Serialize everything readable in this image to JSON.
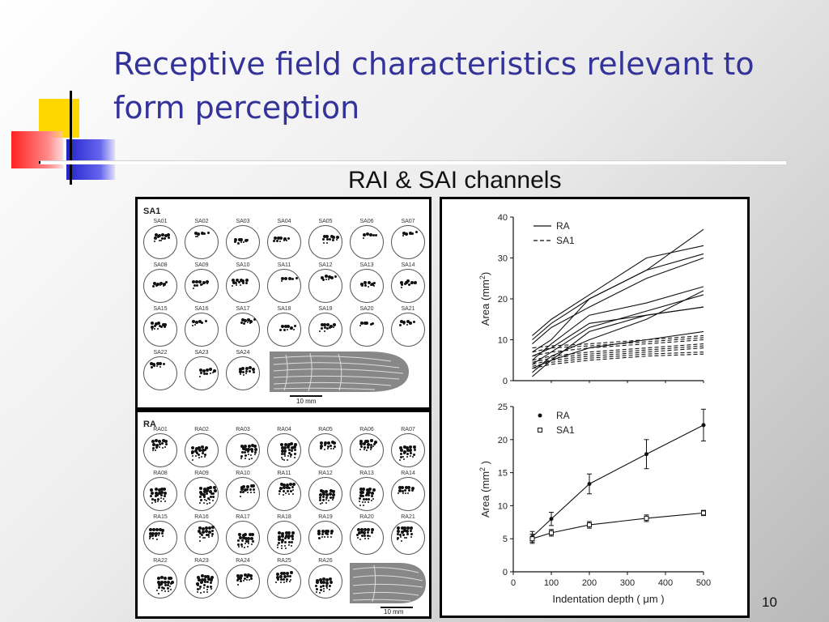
{
  "slide": {
    "title": "Receptive field characteristics relevant to form perception",
    "subtitle": "RAI & SAI channels",
    "page_number": "10",
    "colors": {
      "title": "#333399",
      "deco_yellow": "#ffd700",
      "deco_red": "#ff3333",
      "deco_blue": "#3333cc"
    }
  },
  "sa_grid": {
    "label": "SA1",
    "cells": [
      "SA01",
      "SA02",
      "SA03",
      "SA04",
      "SA05",
      "SA06",
      "SA07",
      "SA08",
      "SA09",
      "SA10",
      "SA11",
      "SA12",
      "SA13",
      "SA14",
      "SA15",
      "SA16",
      "SA17",
      "SA18",
      "SA19",
      "SA20",
      "SA21",
      "SA22",
      "SA23",
      "SA24"
    ],
    "scale_label": "10 mm"
  },
  "ra_grid": {
    "label": "RA",
    "cells": [
      "RA01",
      "RA02",
      "RA03",
      "RA04",
      "RA05",
      "RA06",
      "RA07",
      "RA08",
      "RA09",
      "RA10",
      "RA11",
      "RA12",
      "RA13",
      "RA14",
      "RA15",
      "RA16",
      "RA17",
      "RA18",
      "RA19",
      "RA20",
      "RA21",
      "RA22",
      "RA23",
      "RA24",
      "RA25",
      "RA26"
    ],
    "scale_label": "10 mm"
  },
  "chart_data": [
    {
      "type": "line",
      "ylabel": "Area (mm",
      "ylabel_sup": "2",
      "ylabel_end": ")",
      "ylim": [
        0,
        40
      ],
      "yticks": [
        "0",
        "10",
        "20",
        "30",
        "40"
      ],
      "xlim": [
        0,
        500
      ],
      "legend": {
        "position": "top-left",
        "entries": [
          {
            "name": "RA",
            "style": "solid"
          },
          {
            "name": "SA1",
            "style": "dashed"
          }
        ]
      },
      "x": [
        50,
        100,
        200,
        350,
        500
      ],
      "series": [
        {
          "group": "RA",
          "values": [
            11,
            15,
            21,
            30,
            33
          ]
        },
        {
          "group": "RA",
          "values": [
            10,
            14,
            20,
            27,
            31
          ]
        },
        {
          "group": "RA",
          "values": [
            9,
            13,
            18,
            25,
            30
          ]
        },
        {
          "group": "RA",
          "values": [
            7,
            10,
            20,
            27,
            37
          ]
        },
        {
          "group": "RA",
          "values": [
            6,
            8,
            14,
            16,
            18
          ]
        },
        {
          "group": "RA",
          "values": [
            5,
            9,
            16,
            19,
            23
          ]
        },
        {
          "group": "RA",
          "values": [
            4,
            7,
            13,
            17,
            21
          ]
        },
        {
          "group": "RA",
          "values": [
            1,
            5,
            12,
            16,
            18
          ]
        },
        {
          "group": "RA",
          "values": [
            2,
            6,
            10,
            15,
            22
          ]
        },
        {
          "group": "RA",
          "values": [
            3,
            5,
            8,
            10,
            12
          ]
        },
        {
          "group": "SA1",
          "values": [
            8,
            8.5,
            9,
            10,
            11
          ]
        },
        {
          "group": "SA1",
          "values": [
            7,
            8,
            8.5,
            9.5,
            10.5
          ]
        },
        {
          "group": "SA1",
          "values": [
            6,
            7,
            8,
            9,
            10
          ]
        },
        {
          "group": "SA1",
          "values": [
            5,
            6,
            7,
            8,
            9
          ]
        },
        {
          "group": "SA1",
          "values": [
            4.5,
            5.5,
            6.5,
            7.5,
            8.5
          ]
        },
        {
          "group": "SA1",
          "values": [
            4,
            5,
            6,
            7,
            8
          ]
        },
        {
          "group": "SA1",
          "values": [
            3.5,
            4.5,
            5.5,
            6.5,
            7
          ]
        },
        {
          "group": "SA1",
          "values": [
            3,
            4,
            5,
            6,
            6.5
          ]
        }
      ]
    },
    {
      "type": "line",
      "xlabel": "Indentation depth ( μm )",
      "ylabel": "Area (mm",
      "ylabel_sup": "2",
      "ylabel_end": " )",
      "xlim": [
        0,
        500
      ],
      "xticks": [
        "0",
        "100",
        "200",
        "300",
        "400",
        "500"
      ],
      "ylim": [
        0,
        25
      ],
      "yticks": [
        "0",
        "5",
        "10",
        "15",
        "20",
        "25"
      ],
      "legend": {
        "position": "top-left",
        "entries": [
          {
            "name": "RA",
            "marker": "filled-circle"
          },
          {
            "name": "SA1",
            "marker": "open-square"
          }
        ]
      },
      "x": [
        50,
        100,
        200,
        350,
        500
      ],
      "series": [
        {
          "name": "RA",
          "values": [
            5.3,
            8.0,
            13.3,
            17.8,
            22.2
          ],
          "error": [
            0.8,
            1.0,
            1.5,
            2.2,
            2.4
          ]
        },
        {
          "name": "SA1",
          "values": [
            5.0,
            5.9,
            7.1,
            8.1,
            8.9
          ],
          "error": [
            0.7,
            0.5,
            0.5,
            0.5,
            0.4
          ]
        }
      ]
    }
  ]
}
